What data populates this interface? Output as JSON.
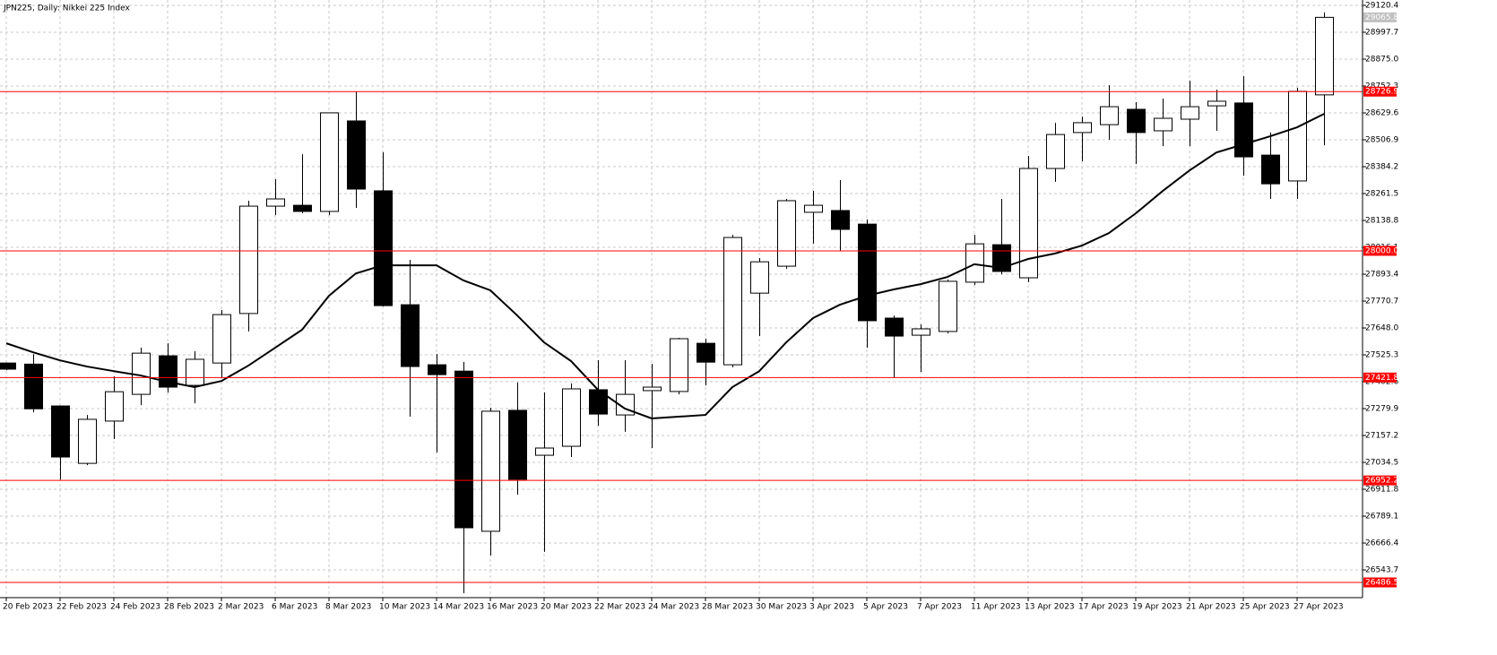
{
  "chart_data": {
    "type": "candlestick",
    "title": "JPN225, Daily:  Nikkei 225 Index",
    "categories": [
      "20 Feb 2023",
      null,
      "22 Feb 2023",
      null,
      "24 Feb 2023",
      null,
      "28 Feb 2023",
      null,
      "2 Mar 2023",
      null,
      "6 Mar 2023",
      null,
      "8 Mar 2023",
      null,
      "10 Mar 2023",
      null,
      "14 Mar 2023",
      null,
      "16 Mar 2023",
      null,
      "20 Mar 2023",
      null,
      "22 Mar 2023",
      null,
      "24 Mar 2023",
      null,
      "28 Mar 2023",
      null,
      "30 Mar 2023",
      null,
      "3 Apr 2023",
      null,
      "5 Apr 2023",
      null,
      "7 Apr 2023",
      null,
      "11 Apr 2023",
      null,
      "13 Apr 2023",
      null,
      "17 Apr 2023",
      null,
      "19 Apr 2023",
      null,
      "21 Apr 2023",
      null,
      "25 Apr 2023",
      null,
      "27 Apr 2023",
      null
    ],
    "open": [
      27488,
      27483,
      27292,
      27030,
      27223,
      27345,
      27521,
      27386,
      27488,
      27714,
      28204,
      28208,
      28180,
      28593,
      28274,
      27754,
      27480,
      27451,
      26720,
      27272,
      27067,
      27108,
      27366,
      27251,
      27362,
      27358,
      27578,
      27480,
      27807,
      27930,
      28176,
      28184,
      28122,
      27693,
      27615,
      27632,
      27857,
      28028,
      27877,
      28376,
      28540,
      28576,
      28646,
      28548,
      28601,
      28662,
      28675,
      28437,
      28319,
      28712
    ],
    "high": [
      27490,
      27528,
      27292,
      27251,
      27427,
      27558,
      27578,
      27542,
      27730,
      28229,
      28327,
      28441,
      28630,
      28728,
      28450,
      27959,
      27529,
      27493,
      27284,
      27399,
      27354,
      27395,
      27501,
      27501,
      27484,
      27603,
      27599,
      28073,
      27967,
      28237,
      28274,
      28323,
      28143,
      27705,
      27664,
      27869,
      28073,
      28237,
      28433,
      28584,
      28613,
      28756,
      28679,
      28695,
      28777,
      28736,
      28797,
      28540,
      28744,
      29088
    ],
    "low": [
      27455,
      27263,
      26956,
      27022,
      27141,
      27296,
      27353,
      27304,
      27419,
      27632,
      28163,
      28172,
      28163,
      28196,
      27746,
      27243,
      27080,
      26437,
      26609,
      26887,
      26626,
      27059,
      27202,
      27174,
      27100,
      27345,
      27386,
      27468,
      27611,
      27918,
      28033,
      27999,
      27558,
      27419,
      27447,
      27623,
      27844,
      27893,
      27857,
      28315,
      28409,
      28507,
      28397,
      28478,
      28478,
      28548,
      28343,
      28237,
      28237,
      28482
    ],
    "close": [
      27460,
      27279,
      27059,
      27231,
      27357,
      27533,
      27378,
      27505,
      27709,
      28204,
      28237,
      28180,
      28630,
      28282,
      27750,
      27472,
      27435,
      26736,
      27268,
      26957,
      27100,
      27370,
      27255,
      27345,
      27378,
      27599,
      27492,
      28061,
      27950,
      28229,
      28208,
      28098,
      27681,
      27611,
      27644,
      27861,
      28032,
      27906,
      28376,
      28531,
      28585,
      28658,
      28540,
      28605,
      28658,
      28683,
      28429,
      28306,
      28728,
      29065.8
    ],
    "up_color": "#ffffff",
    "down_color": "#000000",
    "outline_color": "#000000",
    "moving_average": {
      "color": "#000000",
      "values": [
        27578,
        27537,
        27500,
        27472,
        27451,
        27431,
        27402,
        27378,
        27406,
        27476,
        27558,
        27640,
        27795,
        27897,
        27934,
        27934,
        27934,
        27865,
        27820,
        27705,
        27582,
        27497,
        27366,
        27280,
        27235,
        27243,
        27251,
        27378,
        27451,
        27582,
        27693,
        27754,
        27795,
        27824,
        27848,
        27881,
        27939,
        27922,
        27963,
        27988,
        28024,
        28081,
        28171,
        28273,
        28367,
        28449,
        28486,
        28523,
        28564,
        28625
      ]
    },
    "ylim": [
      26417,
      29145
    ],
    "yticks": [
      29120.4,
      28997.7,
      {
        "value": 28875.0,
        "label": "28875.0"
      },
      28752.3,
      28629.6,
      28506.9,
      28384.2,
      28261.5,
      28138.8,
      28016.1,
      27893.4,
      27770.7,
      {
        "value": 27648.0,
        "label": "27648.0"
      },
      27525.3,
      27402.6,
      27279.9,
      27157.2,
      27034.5,
      26911.8,
      26789.1,
      26666.4,
      26543.7
    ],
    "grid": true,
    "price_lines": [
      28726.9,
      {
        "value": 28000.0,
        "label": "28000.0"
      },
      27421.8,
      26952.2,
      26486.5
    ],
    "price_line_color": "#ff0000",
    "last_price": 29065.8,
    "last_price_color": "#c0c0c0"
  }
}
